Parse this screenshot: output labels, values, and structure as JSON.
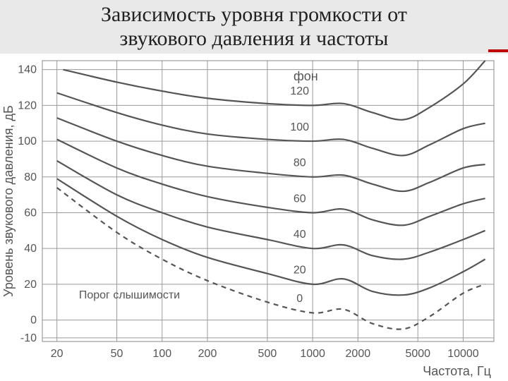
{
  "title": "Зависимость уровня громкости от\nзвукового давления и частоты",
  "title_fontsize": 30,
  "chart": {
    "type": "line",
    "xlabel": "Частота, Гц",
    "ylabel": "Уровень звукового давления, дБ",
    "label_fontsize": 18,
    "tick_fontsize": 16,
    "phon_title": "фон",
    "phon_title_fontsize": 18,
    "threshold_label": "Порог слышимости",
    "background_color": "#ffffff",
    "grid_color": "#9a9a9a",
    "curve_color": "#555555",
    "text_color": "#555555",
    "x_scale": "log",
    "x_ticks": [
      20,
      50,
      100,
      200,
      500,
      1000,
      2000,
      5000,
      10000
    ],
    "y_ticks": [
      -10,
      0,
      20,
      40,
      60,
      80,
      100,
      120,
      140
    ],
    "ylim": [
      -12,
      145
    ],
    "xlim": [
      16,
      16000
    ],
    "phon_labels": [
      "120",
      "100",
      "80",
      "60",
      "40",
      "20",
      "0"
    ],
    "series": [
      {
        "phon": 120,
        "dashed": false,
        "line_width": 2.4,
        "points": [
          [
            22,
            140
          ],
          [
            50,
            133
          ],
          [
            100,
            128
          ],
          [
            200,
            124
          ],
          [
            500,
            121
          ],
          [
            1000,
            120
          ],
          [
            1600,
            121
          ],
          [
            2500,
            116
          ],
          [
            4000,
            112
          ],
          [
            6000,
            119
          ],
          [
            10000,
            132
          ],
          [
            14000,
            145
          ]
        ]
      },
      {
        "phon": 100,
        "dashed": false,
        "line_width": 2.2,
        "points": [
          [
            20,
            127
          ],
          [
            50,
            116
          ],
          [
            100,
            109
          ],
          [
            200,
            104
          ],
          [
            500,
            101
          ],
          [
            1000,
            100
          ],
          [
            1600,
            101
          ],
          [
            2500,
            96
          ],
          [
            4000,
            92
          ],
          [
            6000,
            98
          ],
          [
            10000,
            107
          ],
          [
            14000,
            110
          ]
        ]
      },
      {
        "phon": 80,
        "dashed": false,
        "line_width": 2.2,
        "points": [
          [
            20,
            113
          ],
          [
            50,
            100
          ],
          [
            100,
            92
          ],
          [
            200,
            86
          ],
          [
            500,
            82
          ],
          [
            1000,
            80
          ],
          [
            1600,
            81
          ],
          [
            2500,
            76
          ],
          [
            4000,
            72
          ],
          [
            6000,
            77
          ],
          [
            10000,
            85
          ],
          [
            14000,
            87
          ]
        ]
      },
      {
        "phon": 60,
        "dashed": false,
        "line_width": 2.2,
        "points": [
          [
            20,
            101
          ],
          [
            50,
            85
          ],
          [
            100,
            76
          ],
          [
            200,
            69
          ],
          [
            500,
            63
          ],
          [
            1000,
            60
          ],
          [
            1600,
            62
          ],
          [
            2500,
            56
          ],
          [
            4000,
            53
          ],
          [
            6000,
            58
          ],
          [
            10000,
            65
          ],
          [
            14000,
            68
          ]
        ]
      },
      {
        "phon": 40,
        "dashed": false,
        "line_width": 2.2,
        "points": [
          [
            20,
            89
          ],
          [
            50,
            70
          ],
          [
            100,
            60
          ],
          [
            200,
            52
          ],
          [
            500,
            45
          ],
          [
            1000,
            40
          ],
          [
            1600,
            42
          ],
          [
            2500,
            36
          ],
          [
            4000,
            34
          ],
          [
            6000,
            38
          ],
          [
            10000,
            45
          ],
          [
            14000,
            50
          ]
        ]
      },
      {
        "phon": 20,
        "dashed": false,
        "line_width": 2.2,
        "points": [
          [
            20,
            79
          ],
          [
            50,
            58
          ],
          [
            100,
            45
          ],
          [
            200,
            35
          ],
          [
            500,
            26
          ],
          [
            1000,
            20
          ],
          [
            1600,
            23
          ],
          [
            2500,
            16
          ],
          [
            4000,
            14
          ],
          [
            6000,
            18
          ],
          [
            10000,
            27
          ],
          [
            14000,
            34
          ]
        ]
      },
      {
        "phon": 0,
        "dashed": true,
        "line_width": 2.2,
        "points": [
          [
            20,
            74
          ],
          [
            50,
            49
          ],
          [
            100,
            34
          ],
          [
            200,
            22
          ],
          [
            500,
            10
          ],
          [
            1000,
            4
          ],
          [
            1600,
            6
          ],
          [
            2500,
            -2
          ],
          [
            4000,
            -5
          ],
          [
            6000,
            2
          ],
          [
            10000,
            15
          ],
          [
            14000,
            20
          ]
        ]
      }
    ]
  }
}
